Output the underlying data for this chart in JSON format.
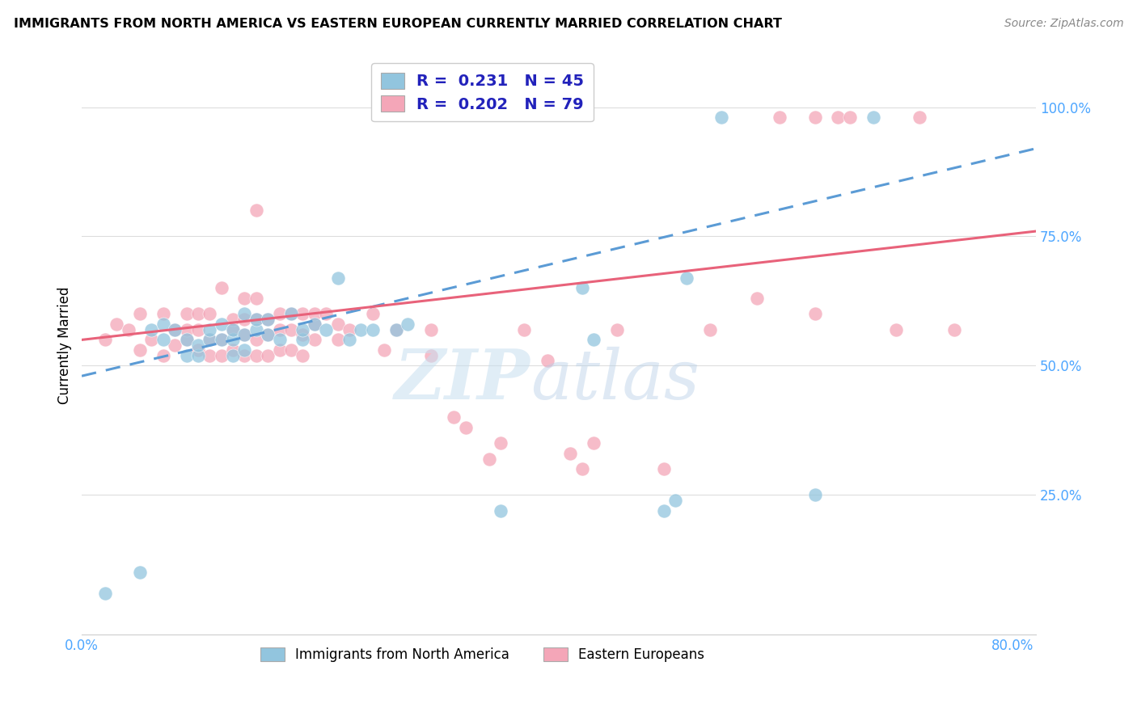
{
  "title": "IMMIGRANTS FROM NORTH AMERICA VS EASTERN EUROPEAN CURRENTLY MARRIED CORRELATION CHART",
  "source": "Source: ZipAtlas.com",
  "ylabel": "Currently Married",
  "ytick_labels": [
    "100.0%",
    "75.0%",
    "50.0%",
    "25.0%"
  ],
  "ytick_values": [
    1.0,
    0.75,
    0.5,
    0.25
  ],
  "xlim": [
    0.0,
    0.82
  ],
  "ylim": [
    -0.02,
    1.1
  ],
  "blue_R": "0.231",
  "blue_N": "45",
  "pink_R": "0.202",
  "pink_N": "79",
  "legend1_label": "Immigrants from North America",
  "legend2_label": "Eastern Europeans",
  "blue_color": "#92c5de",
  "pink_color": "#f4a6b8",
  "blue_line_color": "#5b9bd5",
  "pink_line_color": "#e8627a",
  "tick_color": "#4da6ff",
  "blue_scatter_x": [
    0.02,
    0.05,
    0.06,
    0.07,
    0.07,
    0.08,
    0.09,
    0.09,
    0.1,
    0.1,
    0.11,
    0.11,
    0.12,
    0.12,
    0.13,
    0.13,
    0.13,
    0.14,
    0.14,
    0.14,
    0.15,
    0.15,
    0.16,
    0.16,
    0.17,
    0.18,
    0.19,
    0.19,
    0.2,
    0.21,
    0.22,
    0.23,
    0.24,
    0.25,
    0.27,
    0.28,
    0.36,
    0.43,
    0.44,
    0.5,
    0.51,
    0.52,
    0.55,
    0.63,
    0.68
  ],
  "blue_scatter_y": [
    0.06,
    0.1,
    0.57,
    0.55,
    0.58,
    0.57,
    0.52,
    0.55,
    0.52,
    0.54,
    0.55,
    0.57,
    0.55,
    0.58,
    0.52,
    0.55,
    0.57,
    0.53,
    0.56,
    0.6,
    0.57,
    0.59,
    0.56,
    0.59,
    0.55,
    0.6,
    0.55,
    0.57,
    0.58,
    0.57,
    0.67,
    0.55,
    0.57,
    0.57,
    0.57,
    0.58,
    0.22,
    0.65,
    0.55,
    0.22,
    0.24,
    0.67,
    0.98,
    0.25,
    0.98
  ],
  "pink_scatter_x": [
    0.02,
    0.03,
    0.04,
    0.05,
    0.05,
    0.06,
    0.07,
    0.07,
    0.08,
    0.08,
    0.09,
    0.09,
    0.09,
    0.1,
    0.1,
    0.1,
    0.11,
    0.11,
    0.11,
    0.12,
    0.12,
    0.12,
    0.13,
    0.13,
    0.13,
    0.14,
    0.14,
    0.14,
    0.14,
    0.15,
    0.15,
    0.15,
    0.15,
    0.15,
    0.16,
    0.16,
    0.16,
    0.17,
    0.17,
    0.17,
    0.18,
    0.18,
    0.18,
    0.19,
    0.19,
    0.19,
    0.2,
    0.2,
    0.2,
    0.21,
    0.22,
    0.22,
    0.23,
    0.25,
    0.26,
    0.27,
    0.3,
    0.3,
    0.32,
    0.33,
    0.35,
    0.36,
    0.38,
    0.4,
    0.42,
    0.43,
    0.44,
    0.46,
    0.5,
    0.54,
    0.58,
    0.6,
    0.63,
    0.63,
    0.65,
    0.66,
    0.7,
    0.72,
    0.75
  ],
  "pink_scatter_y": [
    0.55,
    0.58,
    0.57,
    0.53,
    0.6,
    0.55,
    0.52,
    0.6,
    0.54,
    0.57,
    0.55,
    0.57,
    0.6,
    0.53,
    0.57,
    0.6,
    0.52,
    0.55,
    0.6,
    0.52,
    0.55,
    0.65,
    0.53,
    0.57,
    0.59,
    0.52,
    0.56,
    0.59,
    0.63,
    0.52,
    0.55,
    0.59,
    0.63,
    0.8,
    0.52,
    0.56,
    0.59,
    0.53,
    0.57,
    0.6,
    0.53,
    0.57,
    0.6,
    0.52,
    0.56,
    0.6,
    0.55,
    0.58,
    0.6,
    0.6,
    0.55,
    0.58,
    0.57,
    0.6,
    0.53,
    0.57,
    0.52,
    0.57,
    0.4,
    0.38,
    0.32,
    0.35,
    0.57,
    0.51,
    0.33,
    0.3,
    0.35,
    0.57,
    0.3,
    0.57,
    0.63,
    0.98,
    0.98,
    0.6,
    0.98,
    0.98,
    0.57,
    0.98,
    0.57
  ],
  "blue_trend_x0": 0.0,
  "blue_trend_x1": 0.82,
  "blue_trend_y0": 0.48,
  "blue_trend_y1": 0.92,
  "pink_trend_x0": 0.0,
  "pink_trend_x1": 0.82,
  "pink_trend_y0": 0.55,
  "pink_trend_y1": 0.76
}
